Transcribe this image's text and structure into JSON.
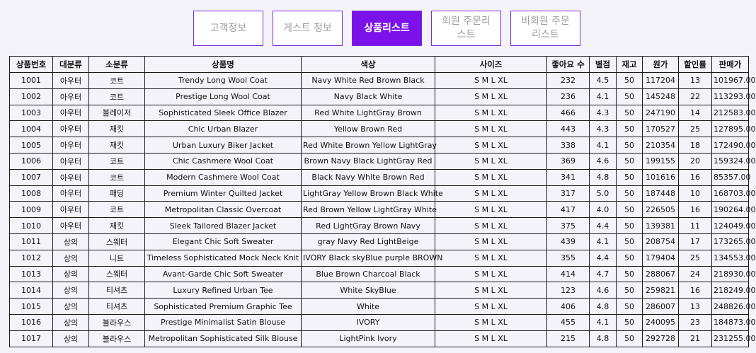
{
  "tabs": [
    {
      "label": "고객정보",
      "active": false
    },
    {
      "label": "게스트 정보",
      "active": false
    },
    {
      "label": "상품리스트",
      "active": true
    },
    {
      "label": "회원 주문리스트",
      "active": false
    },
    {
      "label": "비회원 주문리스트",
      "active": false
    }
  ],
  "table": {
    "headers": [
      "상품번호",
      "대분류",
      "소분류",
      "상품명",
      "색상",
      "사이즈",
      "좋아요 수",
      "별점",
      "재고",
      "원가",
      "할인률",
      "판매가"
    ],
    "rows": [
      [
        "1001",
        "아우터",
        "코트",
        "Trendy Long Wool Coat",
        "Navy White Red Brown Black",
        "S M L XL",
        "232",
        "4.5",
        "50",
        "117204",
        "13",
        "101967.00"
      ],
      [
        "1002",
        "아우터",
        "코트",
        "Prestige Long Wool Coat",
        "Navy Black White",
        "S M L XL",
        "236",
        "4.1",
        "50",
        "145248",
        "22",
        "113293.00"
      ],
      [
        "1003",
        "아우터",
        "블레이저",
        "Sophisticated Sleek Office Blazer",
        "Red White LightGray Brown",
        "S M L XL",
        "466",
        "4.3",
        "50",
        "247190",
        "14",
        "212583.00"
      ],
      [
        "1004",
        "아우터",
        "재킷",
        "Chic Urban Blazer",
        "Yellow Brown Red",
        "S M L XL",
        "443",
        "4.3",
        "50",
        "170527",
        "25",
        "127895.00"
      ],
      [
        "1005",
        "아우터",
        "재킷",
        "Urban Luxury Biker Jacket",
        "Red White Brown Yellow LightGray",
        "S M L XL",
        "338",
        "4.1",
        "50",
        "210354",
        "18",
        "172490.00"
      ],
      [
        "1006",
        "아우터",
        "코트",
        "Chic Cashmere Wool Coat",
        "Brown Navy Black LightGray Red",
        "S M L XL",
        "369",
        "4.6",
        "50",
        "199155",
        "20",
        "159324.00"
      ],
      [
        "1007",
        "아우터",
        "코트",
        "Modern Cashmere Wool Coat",
        "Black Navy White Brown Red",
        "S M L XL",
        "341",
        "4.8",
        "50",
        "101616",
        "16",
        "85357.00"
      ],
      [
        "1008",
        "아우터",
        "패딩",
        "Premium Winter Quilted Jacket",
        "LightGray Yellow Brown Black White",
        "S M L XL",
        "317",
        "5.0",
        "50",
        "187448",
        "10",
        "168703.00"
      ],
      [
        "1009",
        "아우터",
        "코트",
        "Metropolitan Classic Overcoat",
        "Red Brown Yellow LightGray White",
        "S M L XL",
        "417",
        "4.0",
        "50",
        "226505",
        "16",
        "190264.00"
      ],
      [
        "1010",
        "아우터",
        "재킷",
        "Sleek Tailored Blazer Jacket",
        "Red LightGray Brown Navy",
        "S M L XL",
        "375",
        "4.4",
        "50",
        "139381",
        "11",
        "124049.00"
      ],
      [
        "1011",
        "상의",
        "스웨터",
        "Elegant Chic Soft Sweater",
        "gray Navy Red LightBeige",
        "S M L XL",
        "439",
        "4.1",
        "50",
        "208754",
        "17",
        "173265.00"
      ],
      [
        "1012",
        "상의",
        "니트",
        "Timeless Sophisticated Mock Neck Knit",
        "IVORY Black skyBlue purple BROWN",
        "S M L XL",
        "355",
        "4.4",
        "50",
        "179404",
        "25",
        "134553.00"
      ],
      [
        "1013",
        "상의",
        "스웨터",
        "Avant-Garde Chic Soft Sweater",
        "Blue Brown Charcoal Black",
        "S M L XL",
        "414",
        "4.7",
        "50",
        "288067",
        "24",
        "218930.00"
      ],
      [
        "1014",
        "상의",
        "티셔츠",
        "Luxury Refined Urban Tee",
        "White SkyBlue",
        "S M L XL",
        "123",
        "4.6",
        "50",
        "259821",
        "16",
        "218249.00"
      ],
      [
        "1015",
        "상의",
        "티셔츠",
        "Sophisticated Premium Graphic Tee",
        "White",
        "S M L XL",
        "406",
        "4.8",
        "50",
        "286007",
        "13",
        "248826.00"
      ],
      [
        "1016",
        "상의",
        "블라우스",
        "Prestige Minimalist Satin Blouse",
        "IVORY",
        "S M L XL",
        "455",
        "4.1",
        "50",
        "240095",
        "23",
        "184873.00"
      ],
      [
        "1017",
        "상의",
        "블라우스",
        "Metropolitan Sophisticated Silk Blouse",
        "LightPink Ivory",
        "S M L XL",
        "215",
        "4.8",
        "50",
        "292728",
        "21",
        "231255.00"
      ]
    ]
  },
  "colors": {
    "accent": "#7c12ea",
    "tab_border": "#7a2bd6",
    "background": "#f4f3f9"
  }
}
